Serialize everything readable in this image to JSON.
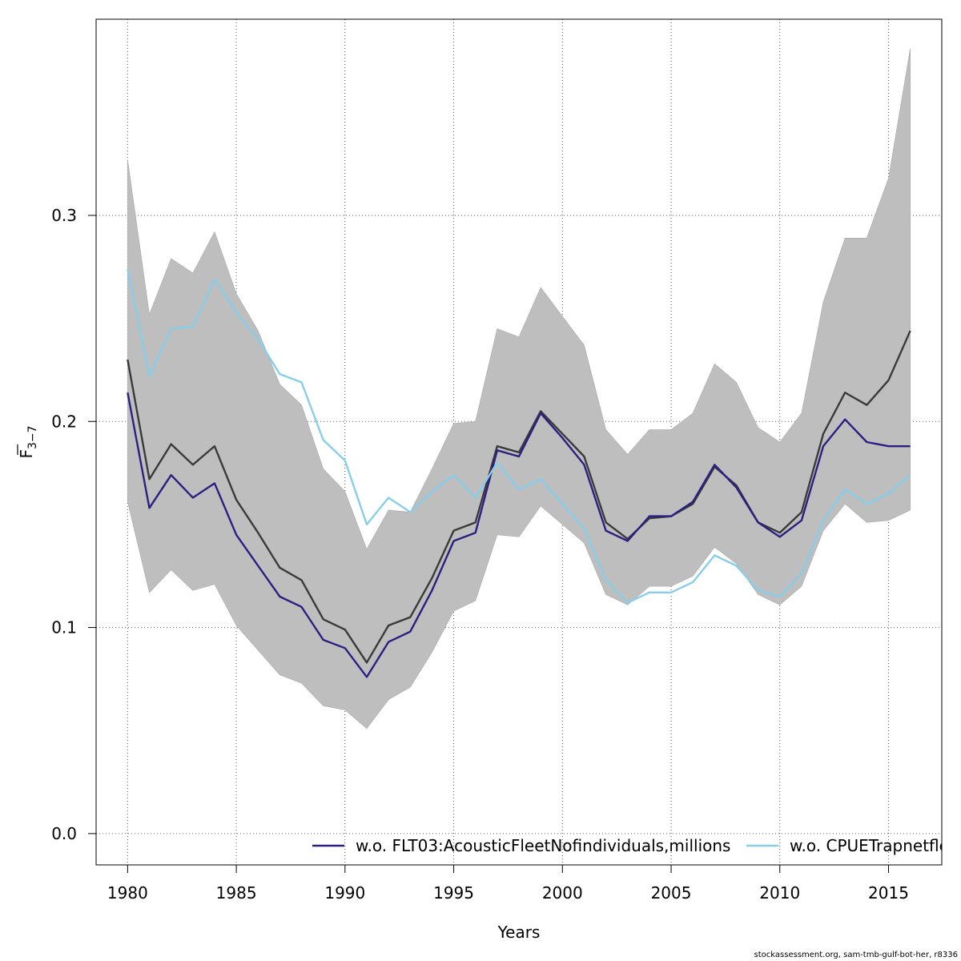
{
  "chart_data": {
    "type": "line",
    "xlabel": "Years",
    "ylabel": "F̅₃₋₇",
    "ylabel_main": "F",
    "ylabel_sub": "3−7",
    "xlim": [
      1978.55,
      2017.45
    ],
    "ylim": [
      -0.0152,
      0.3952
    ],
    "x_ticks": [
      1980,
      1985,
      1990,
      1995,
      2000,
      2005,
      2010,
      2015
    ],
    "y_ticks": [
      0.0,
      0.1,
      0.2,
      0.3
    ],
    "y_tick_labels": [
      "0.0",
      "0.1",
      "0.2",
      "0.3"
    ],
    "grid": true,
    "legend_position": "bottom",
    "x": [
      1980,
      1981,
      1982,
      1983,
      1984,
      1985,
      1986,
      1987,
      1988,
      1989,
      1990,
      1991,
      1992,
      1993,
      1994,
      1995,
      1996,
      1997,
      1998,
      1999,
      2000,
      2001,
      2002,
      2003,
      2004,
      2005,
      2006,
      2007,
      2008,
      2009,
      2010,
      2011,
      2012,
      2013,
      2014,
      2015,
      2016
    ],
    "band": {
      "lower": [
        0.161,
        0.117,
        0.128,
        0.118,
        0.121,
        0.101,
        0.089,
        0.077,
        0.073,
        0.062,
        0.06,
        0.051,
        0.065,
        0.071,
        0.088,
        0.108,
        0.113,
        0.145,
        0.144,
        0.159,
        0.15,
        0.141,
        0.116,
        0.111,
        0.12,
        0.12,
        0.125,
        0.139,
        0.131,
        0.116,
        0.111,
        0.12,
        0.147,
        0.16,
        0.151,
        0.152,
        0.157
      ],
      "upper": [
        0.327,
        0.252,
        0.279,
        0.272,
        0.292,
        0.262,
        0.244,
        0.218,
        0.208,
        0.177,
        0.166,
        0.138,
        0.157,
        0.156,
        0.177,
        0.199,
        0.2,
        0.245,
        0.241,
        0.265,
        0.251,
        0.237,
        0.196,
        0.184,
        0.196,
        0.196,
        0.204,
        0.228,
        0.219,
        0.197,
        0.19,
        0.204,
        0.258,
        0.289,
        0.289,
        0.318,
        0.381
      ]
    },
    "series": [
      {
        "values": [
          0.23,
          0.172,
          0.189,
          0.179,
          0.188,
          0.162,
          0.146,
          0.129,
          0.123,
          0.104,
          0.099,
          0.083,
          0.101,
          0.105,
          0.124,
          0.147,
          0.151,
          0.188,
          0.185,
          0.205,
          0.194,
          0.183,
          0.151,
          0.143,
          0.153,
          0.154,
          0.16,
          0.178,
          0.169,
          0.151,
          0.146,
          0.156,
          0.194,
          0.214,
          0.208,
          0.22,
          0.244
        ],
        "color": "#3a3a3a"
      },
      {
        "name": "w.o. FLT03:AcousticFleetNofindividuals,millions",
        "values": [
          0.214,
          0.158,
          0.174,
          0.163,
          0.17,
          0.145,
          0.13,
          0.115,
          0.11,
          0.094,
          0.09,
          0.076,
          0.093,
          0.098,
          0.118,
          0.142,
          0.146,
          0.186,
          0.183,
          0.204,
          0.192,
          0.179,
          0.147,
          0.142,
          0.154,
          0.154,
          0.161,
          0.179,
          0.168,
          0.151,
          0.144,
          0.152,
          0.188,
          0.201,
          0.19,
          0.188,
          0.188
        ],
        "color": "#2b1f82"
      },
      {
        "name": "w.o. CPUETrapnetfleet",
        "values": [
          0.274,
          0.222,
          0.245,
          0.246,
          0.269,
          0.253,
          0.24,
          0.223,
          0.219,
          0.191,
          0.181,
          0.15,
          0.163,
          0.156,
          0.166,
          0.174,
          0.163,
          0.18,
          0.167,
          0.172,
          0.16,
          0.148,
          0.123,
          0.112,
          0.117,
          0.117,
          0.122,
          0.135,
          0.13,
          0.118,
          0.115,
          0.126,
          0.152,
          0.167,
          0.16,
          0.165,
          0.174
        ],
        "color": "#87ceeb"
      }
    ],
    "band_color": "#bebebe"
  },
  "footer": {
    "credit": "stockassessment.org, sam-tmb-gulf-bot-her, r8336"
  }
}
